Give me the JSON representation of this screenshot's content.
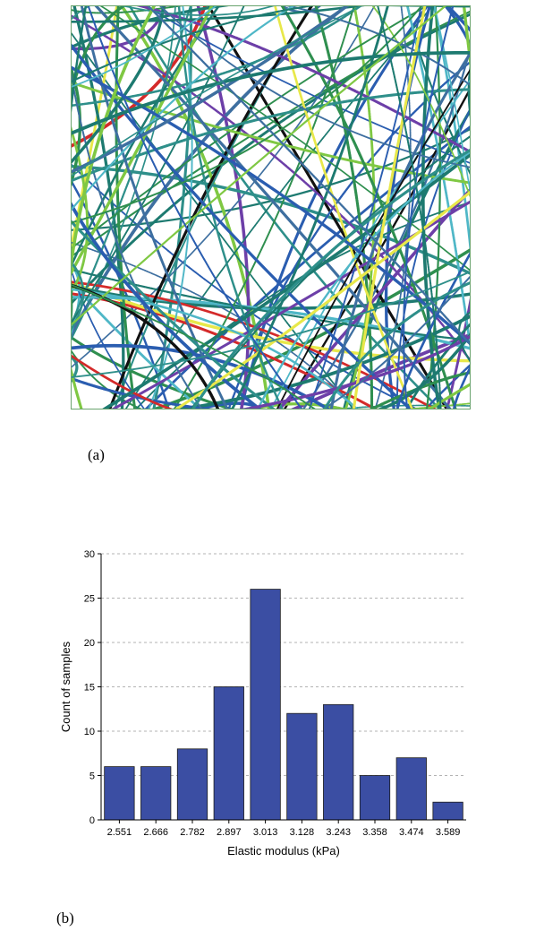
{
  "figure": {
    "label_a": "(a)",
    "label_b": "(b)"
  },
  "fiber_network": {
    "fiber_colors": [
      "#1d7a70",
      "#2e8f8a",
      "#2a5db0",
      "#4fb7c7",
      "#6d3fa8",
      "#7fc843",
      "#d42a2a",
      "#111111",
      "#e8e84a",
      "#2f8f4f",
      "#3e6fa0"
    ],
    "background": "#ffffff",
    "border_color": "#6aa36e"
  },
  "chart_data": {
    "type": "bar",
    "categories": [
      "2.551",
      "2.666",
      "2.782",
      "2.897",
      "3.013",
      "3.128",
      "3.243",
      "3.358",
      "3.474",
      "3.589"
    ],
    "values": [
      6,
      6,
      8,
      15,
      26,
      12,
      13,
      5,
      7,
      2
    ],
    "xlabel": "Elastic modulus (kPa)",
    "ylabel": "Count of samples",
    "ylim": [
      0,
      30
    ],
    "yticks": [
      0,
      5,
      10,
      15,
      20,
      25,
      30
    ],
    "grid": "horizontal dashed",
    "bar_color": "#3b4ea3"
  }
}
